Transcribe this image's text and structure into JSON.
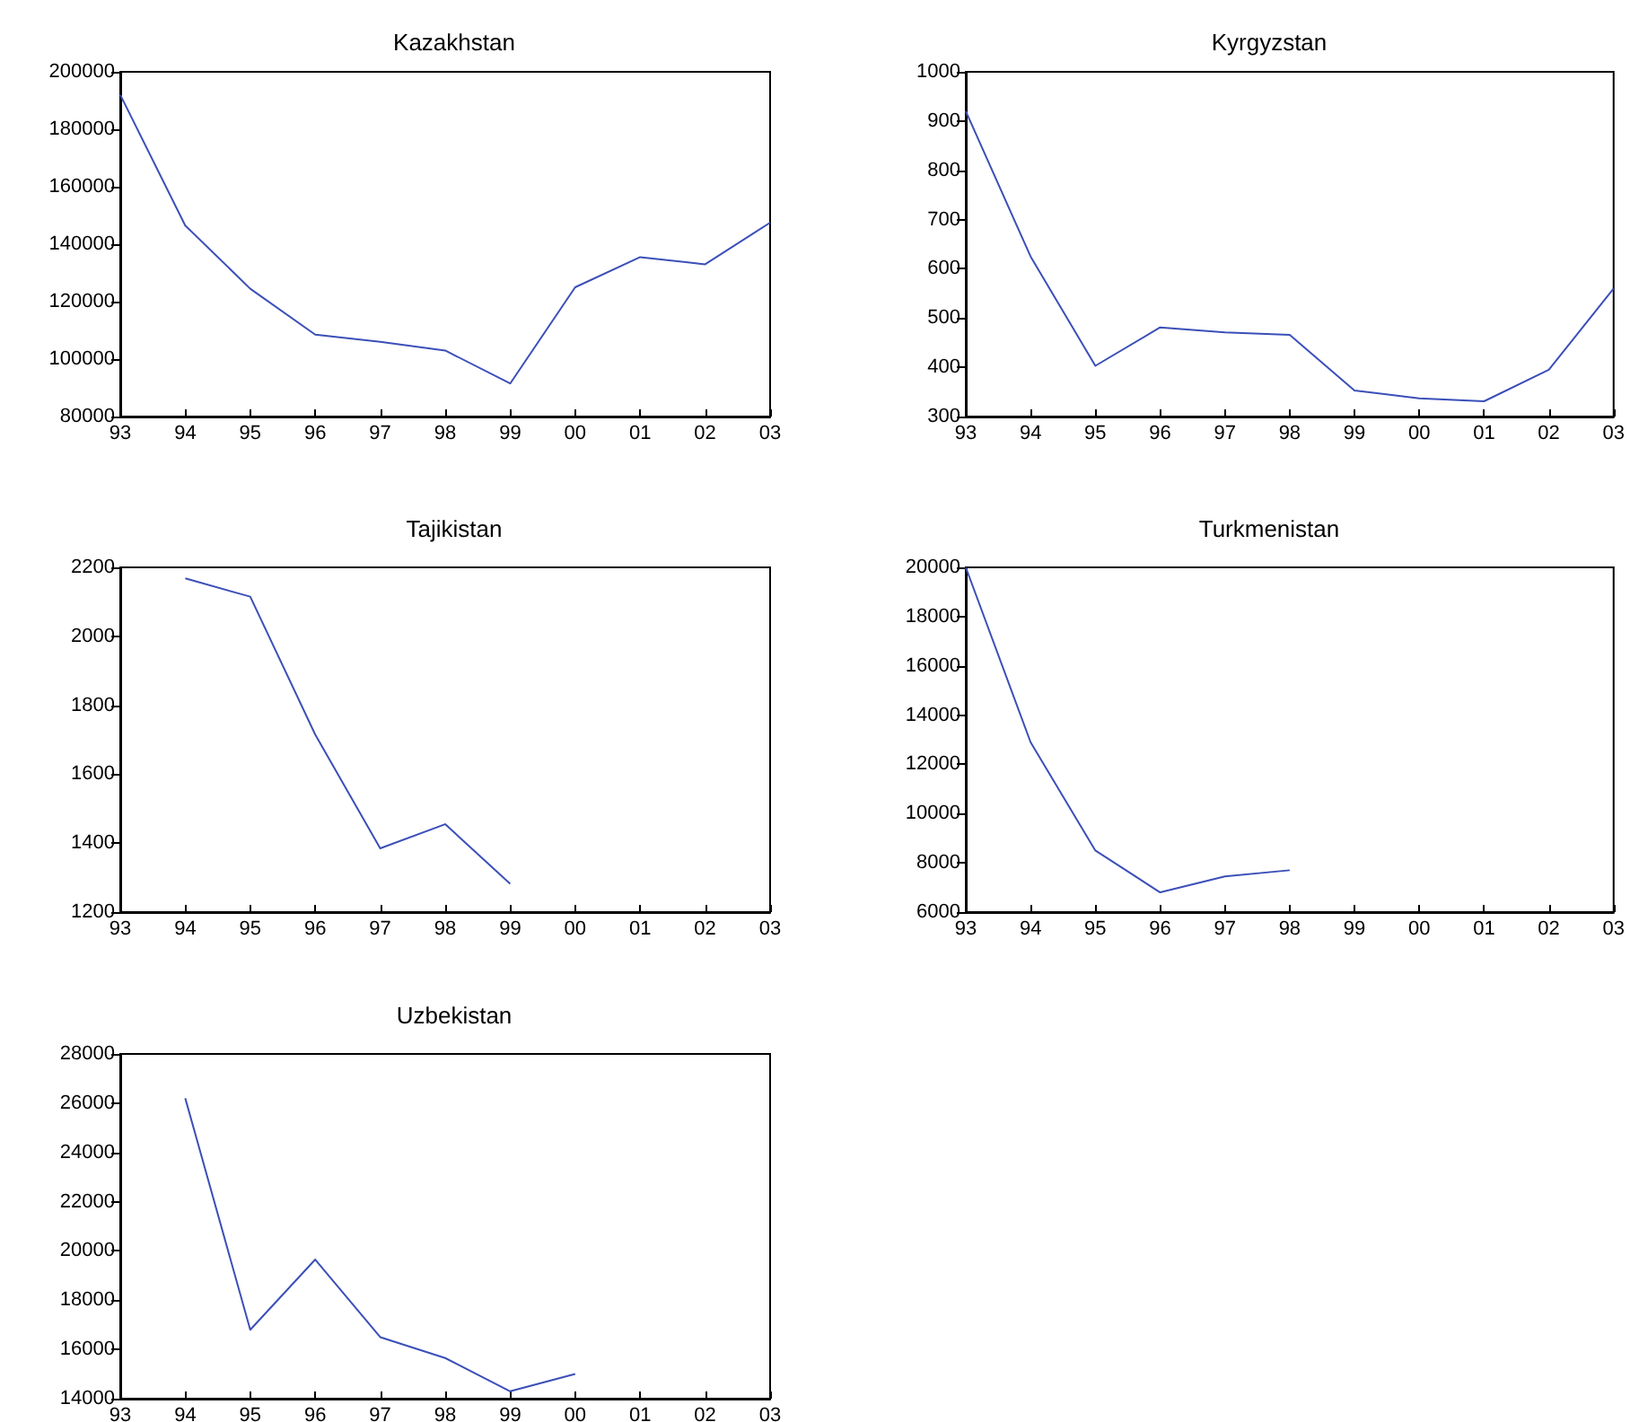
{
  "chart_data": [
    {
      "type": "line",
      "title": "Kazakhstan",
      "categories": [
        "93",
        "94",
        "95",
        "96",
        "97",
        "98",
        "99",
        "00",
        "01",
        "02",
        "03"
      ],
      "series": [
        {
          "color": "#3b4fb8",
          "values": [
            192000,
            146500,
            124500,
            108500,
            106000,
            103000,
            91500,
            125000,
            135500,
            133000,
            147500
          ]
        }
      ],
      "ylim": [
        80000,
        200000
      ],
      "yticks": [
        80000,
        100000,
        120000,
        140000,
        160000,
        180000,
        200000
      ],
      "grid": false
    },
    {
      "type": "line",
      "title": "Kyrgyzstan",
      "categories": [
        "93",
        "94",
        "95",
        "96",
        "97",
        "98",
        "99",
        "00",
        "01",
        "02",
        "03"
      ],
      "series": [
        {
          "color": "#3b4fb8",
          "values": [
            920,
            625,
            403,
            481,
            471,
            466,
            353,
            337,
            331,
            395,
            560
          ]
        }
      ],
      "ylim": [
        300,
        1000
      ],
      "yticks": [
        300,
        400,
        500,
        600,
        700,
        800,
        900,
        1000
      ],
      "grid": false
    },
    {
      "type": "line",
      "title": "Tajikistan",
      "categories": [
        "93",
        "94",
        "95",
        "96",
        "97",
        "98",
        "99",
        "00",
        "01",
        "02",
        "03"
      ],
      "series": [
        {
          "color": "#3b4fb8",
          "values": [
            null,
            2168,
            2115,
            1715,
            1385,
            1455,
            1282,
            null,
            null,
            null,
            null
          ]
        }
      ],
      "ylim": [
        1200,
        2200
      ],
      "yticks": [
        1200,
        1400,
        1600,
        1800,
        2000,
        2200
      ],
      "grid": false
    },
    {
      "type": "line",
      "title": "Turkmenistan",
      "categories": [
        "93",
        "94",
        "95",
        "96",
        "97",
        "98",
        "99",
        "00",
        "01",
        "02",
        "03"
      ],
      "series": [
        {
          "color": "#3b4fb8",
          "values": [
            20000,
            12900,
            8500,
            6800,
            7450,
            7700,
            null,
            null,
            null,
            null,
            null
          ]
        }
      ],
      "ylim": [
        6000,
        20000
      ],
      "yticks": [
        6000,
        8000,
        10000,
        12000,
        14000,
        16000,
        18000,
        20000
      ],
      "grid": false
    },
    {
      "type": "line",
      "title": "Uzbekistan",
      "categories": [
        "93",
        "94",
        "95",
        "96",
        "97",
        "98",
        "99",
        "00",
        "01",
        "02",
        "03"
      ],
      "series": [
        {
          "color": "#3b4fb8",
          "values": [
            null,
            26200,
            16800,
            19650,
            16500,
            15650,
            14300,
            15000,
            null,
            null,
            null
          ]
        }
      ],
      "ylim": [
        14000,
        28000
      ],
      "yticks": [
        14000,
        16000,
        18000,
        20000,
        22000,
        24000,
        26000,
        28000
      ],
      "grid": false
    }
  ]
}
